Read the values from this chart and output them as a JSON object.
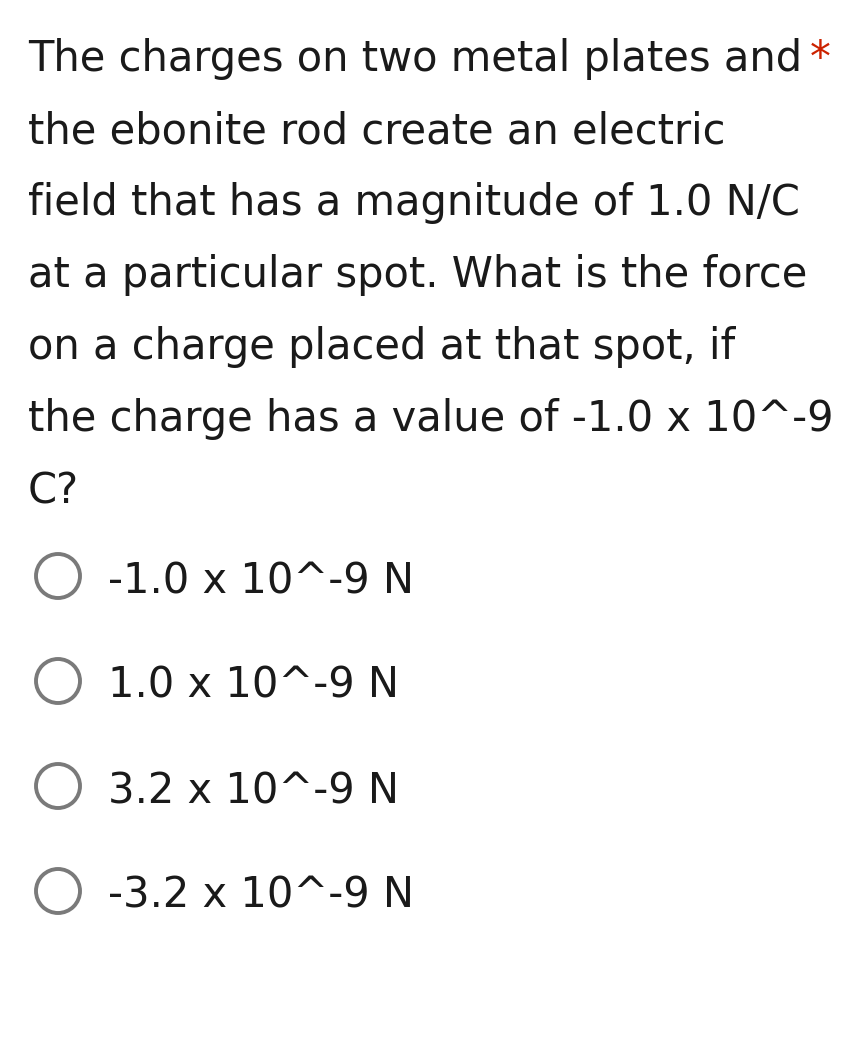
{
  "background_color": "#ffffff",
  "question_lines": [
    "The charges on two metal plates and",
    "the ebonite rod create an electric",
    "field that has a magnitude of 1.0 N/C",
    "at a particular spot. What is the force",
    "on a charge placed at that spot, if",
    "the charge has a value of -1.0 x 10^-9",
    "C?"
  ],
  "asterisk_text": "*",
  "asterisk_color": "#cc2200",
  "options": [
    "-1.0 x 10^-9 N",
    "1.0 x 10^-9 N",
    "3.2 x 10^-9 N",
    "-3.2 x 10^-9 N"
  ],
  "text_color": "#1a1a1a",
  "circle_color": "#7a7a7a",
  "font_size_question": 30,
  "font_size_options": 30,
  "fig_width": 8.59,
  "fig_height": 10.47,
  "dpi": 100
}
